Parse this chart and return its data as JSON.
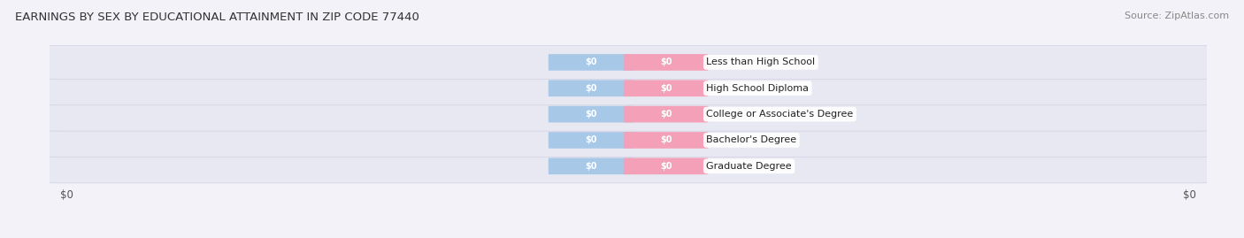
{
  "title": "EARNINGS BY SEX BY EDUCATIONAL ATTAINMENT IN ZIP CODE 77440",
  "source": "Source: ZipAtlas.com",
  "categories": [
    "Less than High School",
    "High School Diploma",
    "College or Associate's Degree",
    "Bachelor's Degree",
    "Graduate Degree"
  ],
  "male_values": [
    0,
    0,
    0,
    0,
    0
  ],
  "female_values": [
    0,
    0,
    0,
    0,
    0
  ],
  "male_color": "#a8c8e8",
  "female_color": "#f4a0b8",
  "background_color": "#f2f2f8",
  "row_color": "#e8e8f2",
  "title_fontsize": 9.5,
  "source_fontsize": 8,
  "tick_label": "$0",
  "figsize": [
    14.06,
    2.69
  ],
  "dpi": 100
}
